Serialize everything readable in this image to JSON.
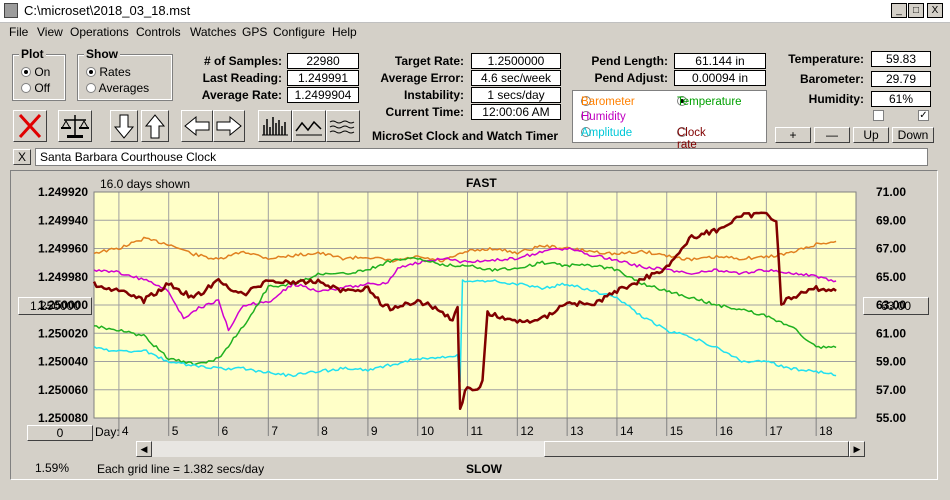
{
  "window": {
    "title": "C:\\microset\\2018_03_18.mst",
    "minimize": "_",
    "maximize": "□",
    "close": "X"
  },
  "menu": [
    "File",
    "View",
    "Operations",
    "Controls",
    "Watches",
    "GPS",
    "Configure",
    "Help"
  ],
  "plot_group": {
    "title": "Plot",
    "on": "On",
    "off": "Off",
    "selected": "On"
  },
  "show_group": {
    "title": "Show",
    "rates": "Rates",
    "averages": "Averages",
    "selected": "Rates"
  },
  "stats": {
    "samples_label": "# of Samples:",
    "samples": "22980",
    "last_reading_label": "Last Reading:",
    "last_reading": "1.249991",
    "average_rate_label": "Average Rate:",
    "average_rate": "1.2499904",
    "target_rate_label": "Target Rate:",
    "target_rate": "1.2500000",
    "average_error_label": "Average Error:",
    "average_error": "4.6 sec/week",
    "instability_label": "Instability:",
    "instability": "1 secs/day",
    "current_time_label": "Current Time:",
    "current_time": "12:00:06 AM",
    "pend_length_label": "Pend Length:",
    "pend_length": "61.144 in",
    "pend_adjust_label": "Pend Adjust:",
    "pend_adjust": "0.00094 in",
    "temperature_label": "Temperature:",
    "temperature": "59.83",
    "barometer_label": "Barometer:",
    "barometer": "29.79",
    "humidity_label": "Humidity:",
    "humidity": "61%"
  },
  "app_name": "MicroSet Clock and Watch Timer",
  "secondary_select": {
    "options": [
      "Barometer",
      "Temperature",
      "Humidity",
      "Amplitude",
      "Clock rate"
    ],
    "selected": "Temperature",
    "colors": {
      "Barometer": "#ff8000",
      "Temperature": "#00a000",
      "Humidity": "#c000c0",
      "Amplitude": "#00c8d8",
      "Clock rate": "#800000"
    }
  },
  "adjust_buttons": {
    "plus": "+",
    "minus": "—",
    "up": "Up",
    "down": "Down"
  },
  "checkbox_checked": "✓",
  "watch_name": "Santa Barbara Courthouse Clock",
  "clear_name": "X",
  "chart_panel": {
    "days_shown": "16.0 days shown",
    "fast": "FAST",
    "slow": "SLOW",
    "day_label": "Day:",
    "grid_note": "Each grid line = 1.382 secs/day",
    "percent": "1.59%",
    "left_button": "1.250000",
    "right_button": "63.00",
    "zero_button": "0"
  },
  "chart_data": {
    "type": "line",
    "x_axis": {
      "label": "Day:",
      "ticks": [
        4,
        5,
        6,
        7,
        8,
        9,
        10,
        11,
        12,
        13,
        14,
        15,
        16,
        17,
        18
      ],
      "range": [
        3.5,
        18.8
      ]
    },
    "y_left": {
      "ticks": [
        "1.249920",
        "1.249940",
        "1.249960",
        "1.249980",
        "1.250000",
        "1.250020",
        "1.250040",
        "1.250060",
        "1.250080"
      ],
      "range": [
        1.24992,
        1.25008
      ],
      "inverted": true
    },
    "y_right": {
      "ticks": [
        "71.00",
        "69.00",
        "67.00",
        "65.00",
        "63.00",
        "61.00",
        "59.00",
        "57.00",
        "55.00"
      ],
      "range": [
        55,
        71
      ]
    },
    "grid": true,
    "background": "#ffffc8",
    "series": [
      {
        "color": "#e08020",
        "axis": "left",
        "points": [
          [
            3.5,
            1.249963
          ],
          [
            4,
            1.24996
          ],
          [
            4.5,
            1.249953
          ],
          [
            5,
            1.249957
          ],
          [
            5.5,
            1.249964
          ],
          [
            6,
            1.249968
          ],
          [
            6.5,
            1.249962
          ],
          [
            7,
            1.249967
          ],
          [
            7.5,
            1.249965
          ],
          [
            8,
            1.249963
          ],
          [
            8.5,
            1.249967
          ],
          [
            9,
            1.249966
          ],
          [
            9.5,
            1.249969
          ],
          [
            10,
            1.249966
          ],
          [
            10.5,
            1.249969
          ],
          [
            11,
            1.249962
          ],
          [
            11.5,
            1.24996
          ],
          [
            12,
            1.249963
          ],
          [
            12.5,
            1.249958
          ],
          [
            13,
            1.24996
          ],
          [
            13.5,
            1.249962
          ],
          [
            14,
            1.249964
          ],
          [
            14.5,
            1.249962
          ],
          [
            15,
            1.249965
          ],
          [
            15.5,
            1.249968
          ],
          [
            16,
            1.249966
          ],
          [
            16.5,
            1.249967
          ],
          [
            17,
            1.249966
          ],
          [
            17.5,
            1.249963
          ],
          [
            18,
            1.249957
          ],
          [
            18.4,
            1.249955
          ]
        ]
      },
      {
        "color": "#d000d0",
        "axis": "left",
        "points": [
          [
            3.5,
            1.249975
          ],
          [
            4,
            1.249977
          ],
          [
            4.5,
            1.249982
          ],
          [
            5,
            1.24999
          ],
          [
            5.3,
            1.25001
          ],
          [
            5.6,
            1.250002
          ],
          [
            6,
            1.249997
          ],
          [
            6.2,
            1.250018
          ],
          [
            6.5,
            1.25
          ],
          [
            7,
            1.249998
          ],
          [
            7.5,
            1.249985
          ],
          [
            8,
            1.24999
          ],
          [
            8.5,
            1.249988
          ],
          [
            9,
            1.249985
          ],
          [
            9.4,
            1.249985
          ],
          [
            9.6,
            1.249973
          ],
          [
            10,
            1.24997
          ],
          [
            10.5,
            1.249967
          ],
          [
            11,
            1.24997
          ],
          [
            11.5,
            1.249968
          ],
          [
            12,
            1.249967
          ],
          [
            12.5,
            1.249962
          ],
          [
            13,
            1.24996
          ],
          [
            13.5,
            1.249965
          ],
          [
            14,
            1.249968
          ],
          [
            14.5,
            1.249973
          ],
          [
            15,
            1.249975
          ],
          [
            15.5,
            1.249978
          ],
          [
            16,
            1.249975
          ],
          [
            16.5,
            1.249978
          ],
          [
            17,
            1.249975
          ],
          [
            17.5,
            1.249977
          ],
          [
            18,
            1.24998
          ],
          [
            18.4,
            1.249983
          ]
        ]
      },
      {
        "color": "#20b020",
        "axis": "left",
        "points": [
          [
            3.5,
            1.250015
          ],
          [
            4,
            1.250018
          ],
          [
            4.5,
            1.250022
          ],
          [
            5,
            1.250038
          ],
          [
            5.5,
            1.250042
          ],
          [
            6,
            1.250038
          ],
          [
            6.3,
            1.250024
          ],
          [
            6.6,
            1.25001
          ],
          [
            7,
            1.249987
          ],
          [
            7.5,
            1.249985
          ],
          [
            8,
            1.249978
          ],
          [
            8.5,
            1.249978
          ],
          [
            9,
            1.249975
          ],
          [
            9.5,
            1.249968
          ],
          [
            10,
            1.249967
          ],
          [
            10.5,
            1.249972
          ],
          [
            11,
            1.249972
          ],
          [
            11.5,
            1.249975
          ],
          [
            12,
            1.249974
          ],
          [
            12.5,
            1.24997
          ],
          [
            13,
            1.249972
          ],
          [
            13.5,
            1.249972
          ],
          [
            14,
            1.249975
          ],
          [
            14.5,
            1.249985
          ],
          [
            15,
            1.24999
          ],
          [
            15.5,
            1.249995
          ],
          [
            16,
            1.25
          ],
          [
            16.5,
            1.250003
          ],
          [
            17,
            1.250008
          ],
          [
            17.5,
            1.250015
          ],
          [
            18,
            1.25003
          ],
          [
            18.4,
            1.25003
          ]
        ]
      },
      {
        "color": "#20e0f0",
        "axis": "left",
        "points": [
          [
            3.5,
            1.25003
          ],
          [
            4,
            1.250033
          ],
          [
            4.5,
            1.250032
          ],
          [
            5,
            1.25004
          ],
          [
            5.5,
            1.250043
          ],
          [
            6,
            1.250045
          ],
          [
            6.5,
            1.250045
          ],
          [
            7,
            1.250048
          ],
          [
            7.5,
            1.25005
          ],
          [
            8,
            1.250047
          ],
          [
            8.5,
            1.250045
          ],
          [
            9,
            1.250046
          ],
          [
            9.5,
            1.250042
          ],
          [
            10,
            1.250038
          ],
          [
            10.5,
            1.250037
          ],
          [
            10.8,
            1.250036
          ],
          [
            10.85,
            1.250055
          ],
          [
            10.9,
            1.249983
          ],
          [
            11.5,
            1.249983
          ],
          [
            12,
            1.249985
          ],
          [
            12.5,
            1.249988
          ],
          [
            13,
            1.249985
          ],
          [
            13.5,
            1.24999
          ],
          [
            14,
            1.249995
          ],
          [
            14.5,
            1.250008
          ],
          [
            15,
            1.250018
          ],
          [
            15.5,
            1.250023
          ],
          [
            16,
            1.25003
          ],
          [
            16.5,
            1.25004
          ],
          [
            17,
            1.25004
          ],
          [
            17.5,
            1.250045
          ],
          [
            18,
            1.250047
          ],
          [
            18.4,
            1.25005
          ]
        ]
      },
      {
        "color": "#800000",
        "axis": "left",
        "width": 2.5,
        "points": [
          [
            3.5,
            1.249985
          ],
          [
            4,
            1.24999
          ],
          [
            4.5,
            1.249997
          ],
          [
            5,
            1.249985
          ],
          [
            5.5,
            1.249995
          ],
          [
            6,
            1.249983
          ],
          [
            6.5,
            1.249993
          ],
          [
            7,
            1.249982
          ],
          [
            7.5,
            1.249985
          ],
          [
            8,
            1.249983
          ],
          [
            8.5,
            1.24999
          ],
          [
            9,
            1.249988
          ],
          [
            9.3,
            1.25
          ],
          [
            9.5,
            1.250003
          ],
          [
            10,
            1.249997
          ],
          [
            10.4,
            1.250003
          ],
          [
            10.7,
            1.25001
          ],
          [
            10.8,
            1.250002
          ],
          [
            10.85,
            1.250075
          ],
          [
            10.95,
            1.25006
          ],
          [
            11.2,
            1.25006
          ],
          [
            11.3,
            1.250055
          ],
          [
            11.4,
            1.250005
          ],
          [
            11.6,
            1.250008
          ],
          [
            12,
            1.250012
          ],
          [
            12.5,
            1.25001
          ],
          [
            13,
            1.249998
          ],
          [
            13.5,
            1.25
          ],
          [
            14,
            1.24999
          ],
          [
            14.5,
            1.249982
          ],
          [
            15,
            1.249973
          ],
          [
            15.5,
            1.249952
          ],
          [
            16,
            1.249947
          ],
          [
            16.5,
            1.249937
          ],
          [
            17,
            1.249935
          ],
          [
            17.2,
            1.24994
          ],
          [
            17.3,
            1.249998
          ],
          [
            17.5,
            1.249995
          ],
          [
            18,
            1.249988
          ],
          [
            18.4,
            1.24999
          ]
        ]
      }
    ]
  }
}
